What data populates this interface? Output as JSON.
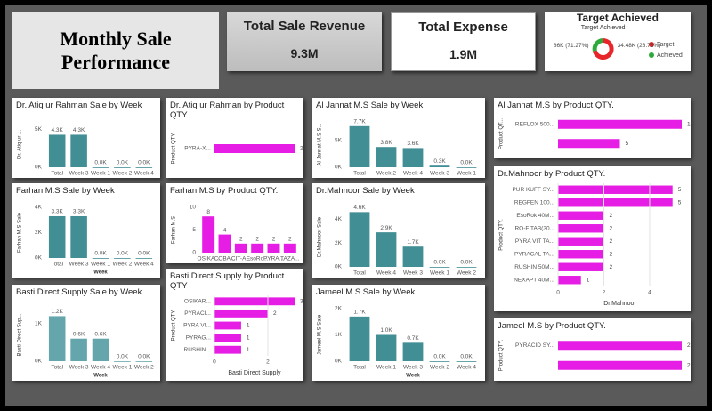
{
  "header": {
    "title": "Monthly Sale Performance"
  },
  "cards": [
    {
      "title": "Total Sale Revenue",
      "value": "9.3M"
    },
    {
      "title": "Total Expense",
      "value": "1.9M"
    }
  ],
  "chart_data": [
    {
      "type": "bar",
      "title": "Dr. Atiq ur Rahman Sale by Week",
      "y_label": "Dr. Atiq ur ...",
      "color": "#418e94",
      "categories": [
        "Total",
        "Week 3",
        "Week 1",
        "Week 2",
        "Week 4"
      ],
      "values": [
        4300,
        4300,
        0,
        0,
        0
      ],
      "value_labels": [
        "4.3K",
        "4.3K",
        "0.0K",
        "0.0K",
        "0.0K"
      ],
      "ylim": [
        0,
        6000
      ],
      "yticks": [
        {
          "value": 0,
          "label": "0K"
        },
        {
          "value": 5000,
          "label": "5K"
        }
      ]
    },
    {
      "type": "bar",
      "title": "Farhan M.S Sale by Week",
      "y_label": "Farhan M.S Sale",
      "x_label": "Week",
      "color": "#418e94",
      "categories": [
        "Total",
        "Week 3",
        "Week 1",
        "Week 2",
        "Week 4"
      ],
      "values": [
        3300,
        3300,
        0,
        0,
        0
      ],
      "value_labels": [
        "3.3K",
        "3.3K",
        "0.0K",
        "0.0K",
        "0.0K"
      ],
      "ylim": [
        0,
        4000
      ],
      "yticks": [
        {
          "value": 0,
          "label": "0K"
        },
        {
          "value": 2000,
          "label": "2K"
        },
        {
          "value": 4000,
          "label": "4K"
        }
      ]
    },
    {
      "type": "bar",
      "title": "Basti Direct Supply Sale by Week",
      "y_label": "Basti Direct Sup...",
      "x_label": "Week",
      "color": "#64a6ab",
      "categories": [
        "Total",
        "Week 3",
        "Week 4",
        "Week 1",
        "Week 2"
      ],
      "values": [
        1200,
        600,
        600,
        0,
        0
      ],
      "value_labels": [
        "1.2K",
        "0.6K",
        "0.6K",
        "0.0K",
        "0.0K"
      ],
      "ylim": [
        0,
        1400
      ],
      "yticks": [
        {
          "value": 0,
          "label": "0K"
        },
        {
          "value": 1000,
          "label": "1K"
        }
      ]
    },
    {
      "type": "bar",
      "horizontal": true,
      "title": "Dr. Atiq ur Rahman by Product QTY",
      "y_label": "Product QTY",
      "color": "#e51de5",
      "categories": [
        "PYRA-X..."
      ],
      "values": [
        2
      ],
      "xlim": [
        0,
        2
      ]
    },
    {
      "type": "bar",
      "title": "Farhan M.S by Product QTY.",
      "y_label": "Farhan M.S",
      "color": "#e51de5",
      "categories": [
        "OSIKA...",
        "COBA...",
        "CIT-A...",
        "EsoRo...",
        "PYRA...",
        "TAZA..."
      ],
      "values": [
        8,
        4,
        2,
        2,
        2,
        2
      ],
      "ylim": [
        0,
        10
      ],
      "yticks": [
        0,
        5,
        10
      ]
    },
    {
      "type": "bar",
      "horizontal": true,
      "title": "Basti Direct Supply by Product QTY",
      "y_label": "Product QTY",
      "x_label": "Basti Direct Supply",
      "color": "#e51de5",
      "categories": [
        "OSIKAR...",
        "PYRACI...",
        "PYRA VI...",
        "PYRAG...",
        "RUSHIN..."
      ],
      "values": [
        3,
        2,
        1,
        1,
        1
      ],
      "xlim": [
        0,
        3
      ],
      "xticks": [
        0,
        2
      ]
    },
    {
      "type": "bar",
      "title": "Al Jannat M.S Sale by Week",
      "y_label": "Al Jannat M.S S...",
      "color": "#418e94",
      "categories": [
        "Total",
        "Week 2",
        "Week 4",
        "Week 3",
        "Week 1"
      ],
      "values": [
        7700,
        3800,
        3600,
        300,
        0
      ],
      "value_labels": [
        "7.7K",
        "3.8K",
        "3.6K",
        "0.3K",
        "0.0K"
      ],
      "ylim": [
        0,
        8500
      ],
      "yticks": [
        {
          "value": 0,
          "label": "0K"
        },
        {
          "value": 5000,
          "label": "5K"
        }
      ]
    },
    {
      "type": "bar",
      "title": "Dr.Mahnoor Sale by Week",
      "y_label": "Dr.Mahnoor Sale",
      "color": "#418e94",
      "categories": [
        "Total",
        "Week 4",
        "Week 3",
        "Week 1",
        "Week 2"
      ],
      "values": [
        4600,
        2900,
        1700,
        0,
        0
      ],
      "value_labels": [
        "4.6K",
        "2.9K",
        "1.7K",
        "0.0K",
        "0.0K"
      ],
      "ylim": [
        0,
        5000
      ],
      "yticks": [
        {
          "value": 0,
          "label": "0K"
        },
        {
          "value": 2000,
          "label": "2K"
        },
        {
          "value": 4000,
          "label": "4K"
        }
      ]
    },
    {
      "type": "bar",
      "title": "Jameel M.S Sale by Week",
      "y_label": "Jameel M.S Sale",
      "x_label": "Week",
      "color": "#418e94",
      "categories": [
        "Total",
        "Week 1",
        "Week 3",
        "Week 2",
        "Week 4"
      ],
      "values": [
        1700,
        1000,
        700,
        0,
        0
      ],
      "value_labels": [
        "1.7K",
        "1.0K",
        "0.7K",
        "0.0K",
        "0.0K"
      ],
      "ylim": [
        0,
        2000
      ],
      "yticks": [
        {
          "value": 0,
          "label": "0K"
        },
        {
          "value": 1000,
          "label": "1K"
        },
        {
          "value": 2000,
          "label": "2K"
        }
      ]
    },
    {
      "type": "bar",
      "horizontal": true,
      "title": "Al Jannat M.S by Product QTY.",
      "y_label": "Product QT...",
      "color": "#e51de5",
      "categories": [
        "REFLOX 500...",
        null
      ],
      "values": [
        10,
        5
      ],
      "xlim": [
        0,
        10
      ]
    },
    {
      "type": "bar",
      "horizontal": true,
      "title": "Dr.Mahnoor by Product QTY.",
      "y_label": "Product QTY.",
      "x_label": "Dr.Mahnoor",
      "color": "#e51de5",
      "categories": [
        "PUR KUFF SY...",
        "REGFEN 100...",
        "EsoRok 40M...",
        "IRO-F TAB(30...",
        "PYRA VIT TA...",
        "PYRACAL TA...",
        "RUSHIN 50M...",
        "NEXAPT 40M..."
      ],
      "values": [
        5,
        5,
        2,
        2,
        2,
        2,
        2,
        1
      ],
      "xlim": [
        0,
        5.4
      ],
      "xticks": [
        0,
        2,
        4
      ]
    },
    {
      "type": "bar",
      "horizontal": true,
      "title": "Jameel M.S by Product QTY.",
      "y_label": "Product QTY.",
      "color": "#e51de5",
      "categories": [
        "PYRACID SY...",
        null
      ],
      "values": [
        2,
        2
      ],
      "xlim": [
        0,
        2
      ]
    },
    {
      "type": "pie",
      "donut": true,
      "title": "Target Achieved",
      "legend_title": "Target Achieved",
      "series": [
        {
          "name": "Target",
          "color": "#e8262a",
          "values": [
            86000
          ],
          "value_labels": [
            "86K (71.27%)"
          ]
        },
        {
          "name": "Achieved",
          "color": "#2eaa3c",
          "values": [
            34480
          ],
          "value_labels": [
            "34.48K (28.73%)"
          ]
        }
      ]
    }
  ]
}
